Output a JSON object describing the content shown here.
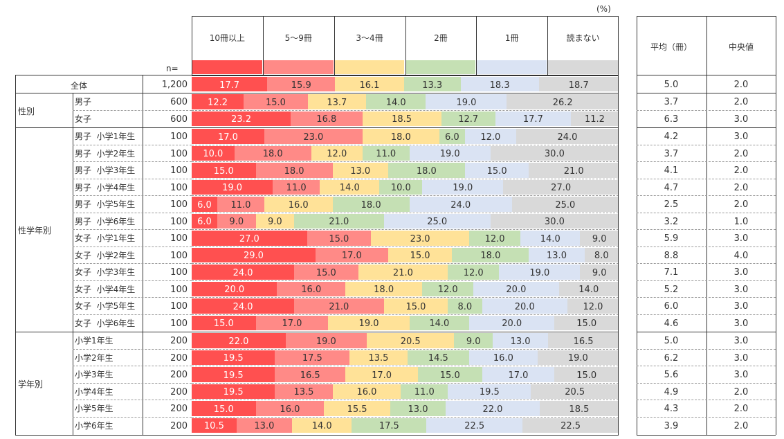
{
  "unit_label": "(%)",
  "n_label": "n=",
  "categories": [
    "10冊以上",
    "5～9冊",
    "3～4冊",
    "2冊",
    "1冊",
    "読まない"
  ],
  "colors": [
    "#ff5050",
    "#ff8a87",
    "#ffe298",
    "#c5e0b4",
    "#dae3f3",
    "#d9d9d9"
  ],
  "stat_headers": [
    "平均（冊）",
    "中央値"
  ],
  "groups": [
    {
      "label": "",
      "rows": [
        0
      ]
    },
    {
      "label": "性別",
      "rows": [
        1,
        2
      ]
    },
    {
      "label": "性学年別",
      "rows": [
        3,
        4,
        5,
        6,
        7,
        8,
        9,
        10,
        11,
        12,
        13,
        14
      ]
    },
    {
      "label": "学年別",
      "rows": [
        15,
        16,
        17,
        18,
        19,
        20
      ]
    }
  ],
  "chart_data": {
    "type": "bar",
    "orientation": "horizontal",
    "stacked": true,
    "percent": true,
    "title": "",
    "unit": "(%)",
    "legend": [
      "10冊以上",
      "5～9冊",
      "3～4冊",
      "2冊",
      "1冊",
      "読まない"
    ],
    "xlim": [
      0,
      100
    ],
    "rows": [
      {
        "group": "",
        "label": "全体",
        "n": "1,200",
        "values": [
          "17.7",
          "15.9",
          "16.1",
          "13.3",
          "18.3",
          "18.7"
        ],
        "mean": "5.0",
        "median": "2.0"
      },
      {
        "group": "性別",
        "label": "男子",
        "n": "600",
        "values": [
          "12.2",
          "15.0",
          "13.7",
          "14.0",
          "19.0",
          "26.2"
        ],
        "mean": "3.7",
        "median": "2.0"
      },
      {
        "group": "性別",
        "label": "女子",
        "n": "600",
        "values": [
          "23.2",
          "16.8",
          "18.5",
          "12.7",
          "17.7",
          "11.2"
        ],
        "mean": "6.3",
        "median": "3.0"
      },
      {
        "group": "性学年別",
        "label": "男子  小学1年生",
        "n": "100",
        "values": [
          "17.0",
          "23.0",
          "18.0",
          "6.0",
          "12.0",
          "24.0"
        ],
        "mean": "4.2",
        "median": "3.0"
      },
      {
        "group": "性学年別",
        "label": "男子  小学2年生",
        "n": "100",
        "values": [
          "10.0",
          "18.0",
          "12.0",
          "11.0",
          "19.0",
          "30.0"
        ],
        "mean": "3.7",
        "median": "2.0"
      },
      {
        "group": "性学年別",
        "label": "男子  小学3年生",
        "n": "100",
        "values": [
          "15.0",
          "18.0",
          "13.0",
          "18.0",
          "15.0",
          "21.0"
        ],
        "mean": "4.1",
        "median": "2.0"
      },
      {
        "group": "性学年別",
        "label": "男子  小学4年生",
        "n": "100",
        "values": [
          "19.0",
          "11.0",
          "14.0",
          "10.0",
          "19.0",
          "27.0"
        ],
        "mean": "4.7",
        "median": "2.0"
      },
      {
        "group": "性学年別",
        "label": "男子  小学5年生",
        "n": "100",
        "values": [
          "6.0",
          "11.0",
          "16.0",
          "18.0",
          "24.0",
          "25.0"
        ],
        "mean": "2.5",
        "median": "2.0"
      },
      {
        "group": "性学年別",
        "label": "男子  小学6年生",
        "n": "100",
        "values": [
          "6.0",
          "9.0",
          "9.0",
          "21.0",
          "25.0",
          "30.0"
        ],
        "mean": "3.2",
        "median": "1.0"
      },
      {
        "group": "性学年別",
        "label": "女子  小学1年生",
        "n": "100",
        "values": [
          "27.0",
          "15.0",
          "23.0",
          "12.0",
          "14.0",
          "9.0"
        ],
        "mean": "5.9",
        "median": "3.0"
      },
      {
        "group": "性学年別",
        "label": "女子  小学2年生",
        "n": "100",
        "values": [
          "29.0",
          "17.0",
          "15.0",
          "18.0",
          "13.0",
          "8.0"
        ],
        "mean": "8.8",
        "median": "4.0"
      },
      {
        "group": "性学年別",
        "label": "女子  小学3年生",
        "n": "100",
        "values": [
          "24.0",
          "15.0",
          "21.0",
          "12.0",
          "19.0",
          "9.0"
        ],
        "mean": "7.1",
        "median": "3.0"
      },
      {
        "group": "性学年別",
        "label": "女子  小学4年生",
        "n": "100",
        "values": [
          "20.0",
          "16.0",
          "18.0",
          "12.0",
          "20.0",
          "14.0"
        ],
        "mean": "5.2",
        "median": "3.0"
      },
      {
        "group": "性学年別",
        "label": "女子  小学5年生",
        "n": "100",
        "values": [
          "24.0",
          "21.0",
          "15.0",
          "8.0",
          "20.0",
          "12.0"
        ],
        "mean": "6.0",
        "median": "3.0"
      },
      {
        "group": "性学年別",
        "label": "女子  小学6年生",
        "n": "100",
        "values": [
          "15.0",
          "17.0",
          "19.0",
          "14.0",
          "20.0",
          "15.0"
        ],
        "mean": "4.6",
        "median": "3.0"
      },
      {
        "group": "学年別",
        "label": "小学1年生",
        "n": "200",
        "values": [
          "22.0",
          "19.0",
          "20.5",
          "9.0",
          "13.0",
          "16.5"
        ],
        "mean": "5.0",
        "median": "3.0"
      },
      {
        "group": "学年別",
        "label": "小学2年生",
        "n": "200",
        "values": [
          "19.5",
          "17.5",
          "13.5",
          "14.5",
          "16.0",
          "19.0"
        ],
        "mean": "6.2",
        "median": "3.0"
      },
      {
        "group": "学年別",
        "label": "小学3年生",
        "n": "200",
        "values": [
          "19.5",
          "16.5",
          "17.0",
          "15.0",
          "17.0",
          "15.0"
        ],
        "mean": "5.6",
        "median": "3.0"
      },
      {
        "group": "学年別",
        "label": "小学4年生",
        "n": "200",
        "values": [
          "19.5",
          "13.5",
          "16.0",
          "11.0",
          "19.5",
          "20.5"
        ],
        "mean": "4.9",
        "median": "2.0"
      },
      {
        "group": "学年別",
        "label": "小学5年生",
        "n": "200",
        "values": [
          "15.0",
          "16.0",
          "15.5",
          "13.0",
          "22.0",
          "18.5"
        ],
        "mean": "4.3",
        "median": "2.0"
      },
      {
        "group": "学年別",
        "label": "小学6年生",
        "n": "200",
        "values": [
          "10.5",
          "13.0",
          "14.0",
          "17.5",
          "22.5",
          "22.5"
        ],
        "mean": "3.9",
        "median": "2.0"
      }
    ]
  }
}
